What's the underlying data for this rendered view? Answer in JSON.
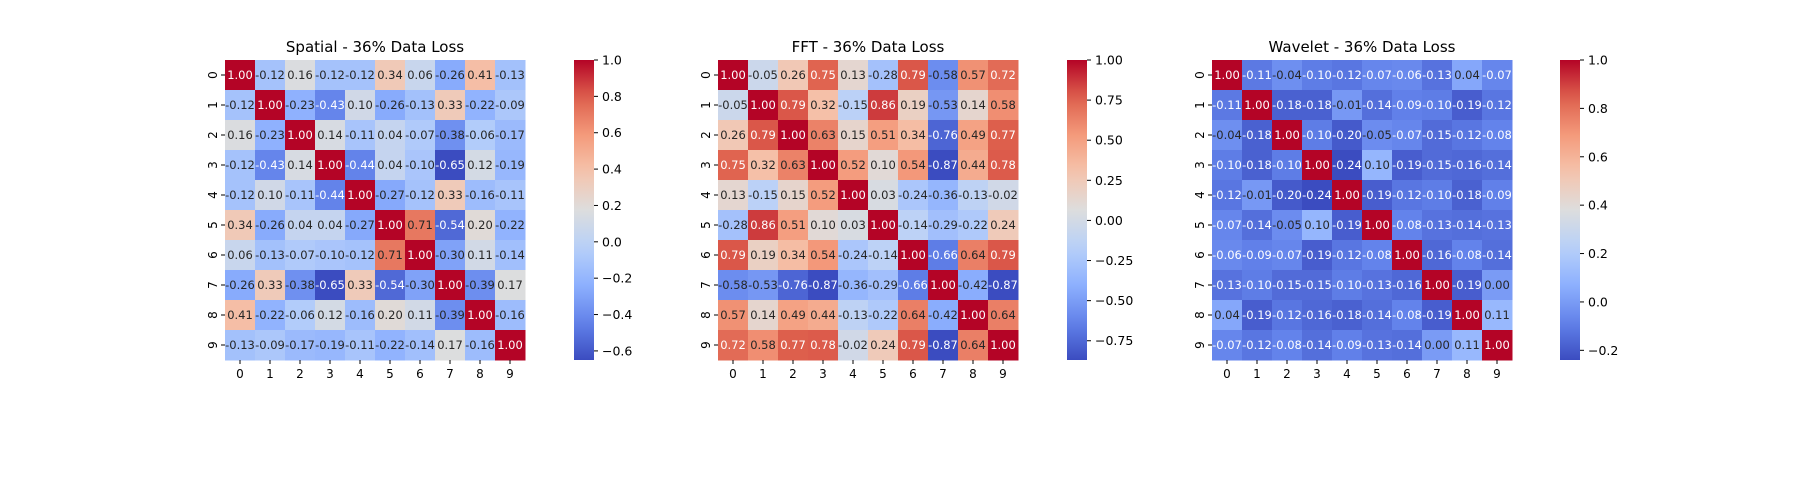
{
  "chart_data": [
    {
      "type": "heatmap",
      "title": "Spatial - 36% Data Loss",
      "x_labels": [
        "0",
        "1",
        "2",
        "3",
        "4",
        "5",
        "6",
        "7",
        "8",
        "9"
      ],
      "y_labels": [
        "0",
        "1",
        "2",
        "3",
        "4",
        "5",
        "6",
        "7",
        "8",
        "9"
      ],
      "vmin": -0.65,
      "vmax": 1.0,
      "colorbar_ticks": [
        -0.6,
        -0.4,
        -0.2,
        0.0,
        0.2,
        0.4,
        0.6,
        0.8,
        1.0
      ],
      "colorbar_tick_labels": [
        "−0.6",
        "−0.4",
        "−0.2",
        "0.0",
        "0.2",
        "0.4",
        "0.6",
        "0.8",
        "1.0"
      ],
      "colormap": "coolwarm",
      "values": [
        [
          1.0,
          -0.12,
          0.16,
          -0.12,
          -0.12,
          0.34,
          0.06,
          -0.26,
          0.41,
          -0.13
        ],
        [
          -0.12,
          1.0,
          -0.23,
          -0.43,
          0.1,
          -0.26,
          -0.13,
          0.33,
          -0.22,
          -0.09
        ],
        [
          0.16,
          -0.23,
          1.0,
          0.14,
          -0.11,
          0.04,
          -0.07,
          -0.38,
          -0.06,
          -0.17
        ],
        [
          -0.12,
          -0.43,
          0.14,
          1.0,
          -0.44,
          0.04,
          -0.1,
          -0.65,
          0.12,
          -0.19
        ],
        [
          -0.12,
          0.1,
          -0.11,
          -0.44,
          1.0,
          -0.27,
          -0.12,
          0.33,
          -0.16,
          -0.11
        ],
        [
          0.34,
          -0.26,
          0.04,
          0.04,
          -0.27,
          1.0,
          0.71,
          -0.54,
          0.2,
          -0.22
        ],
        [
          0.06,
          -0.13,
          -0.07,
          -0.1,
          -0.12,
          0.71,
          1.0,
          -0.3,
          0.11,
          -0.14
        ],
        [
          -0.26,
          0.33,
          -0.38,
          -0.65,
          0.33,
          -0.54,
          -0.3,
          1.0,
          -0.39,
          0.17
        ],
        [
          0.41,
          -0.22,
          -0.06,
          0.12,
          -0.16,
          0.2,
          0.11,
          -0.39,
          1.0,
          -0.16
        ],
        [
          -0.13,
          -0.09,
          -0.17,
          -0.19,
          -0.11,
          -0.22,
          -0.14,
          0.17,
          -0.16,
          1.0
        ]
      ]
    },
    {
      "type": "heatmap",
      "title": "FFT - 36% Data Loss",
      "x_labels": [
        "0",
        "1",
        "2",
        "3",
        "4",
        "5",
        "6",
        "7",
        "8",
        "9"
      ],
      "y_labels": [
        "0",
        "1",
        "2",
        "3",
        "4",
        "5",
        "6",
        "7",
        "8",
        "9"
      ],
      "vmin": -0.87,
      "vmax": 1.0,
      "colorbar_ticks": [
        -0.75,
        -0.5,
        -0.25,
        0.0,
        0.25,
        0.5,
        0.75,
        1.0
      ],
      "colorbar_tick_labels": [
        "−0.75",
        "−0.50",
        "−0.25",
        "0.00",
        "0.25",
        "0.50",
        "0.75",
        "1.00"
      ],
      "colormap": "coolwarm",
      "values": [
        [
          1.0,
          -0.05,
          0.26,
          0.75,
          0.13,
          -0.28,
          0.79,
          -0.58,
          0.57,
          0.72
        ],
        [
          -0.05,
          1.0,
          0.79,
          0.32,
          -0.15,
          0.86,
          0.19,
          -0.53,
          0.14,
          0.58
        ],
        [
          0.26,
          0.79,
          1.0,
          0.63,
          0.15,
          0.51,
          0.34,
          -0.76,
          0.49,
          0.77
        ],
        [
          0.75,
          0.32,
          0.63,
          1.0,
          0.52,
          0.1,
          0.54,
          -0.87,
          0.44,
          0.78
        ],
        [
          0.13,
          -0.15,
          0.15,
          0.52,
          1.0,
          0.03,
          -0.24,
          -0.36,
          -0.13,
          -0.02
        ],
        [
          -0.28,
          0.86,
          0.51,
          0.1,
          0.03,
          1.0,
          -0.14,
          -0.29,
          -0.22,
          0.24
        ],
        [
          0.79,
          0.19,
          0.34,
          0.54,
          -0.24,
          -0.14,
          1.0,
          -0.66,
          0.64,
          0.79
        ],
        [
          -0.58,
          -0.53,
          -0.76,
          -0.87,
          -0.36,
          -0.29,
          -0.66,
          1.0,
          -0.42,
          -0.87
        ],
        [
          0.57,
          0.14,
          0.49,
          0.44,
          -0.13,
          -0.22,
          0.64,
          -0.42,
          1.0,
          0.64
        ],
        [
          0.72,
          0.58,
          0.77,
          0.78,
          -0.02,
          0.24,
          0.79,
          -0.87,
          0.64,
          1.0
        ]
      ]
    },
    {
      "type": "heatmap",
      "title": "Wavelet - 36% Data Loss",
      "x_labels": [
        "0",
        "1",
        "2",
        "3",
        "4",
        "5",
        "6",
        "7",
        "8",
        "9"
      ],
      "y_labels": [
        "0",
        "1",
        "2",
        "3",
        "4",
        "5",
        "6",
        "7",
        "8",
        "9"
      ],
      "vmin": -0.24,
      "vmax": 1.0,
      "colorbar_ticks": [
        -0.2,
        0.0,
        0.2,
        0.4,
        0.6,
        0.8,
        1.0
      ],
      "colorbar_tick_labels": [
        "−0.2",
        "0.0",
        "0.2",
        "0.4",
        "0.6",
        "0.8",
        "1.0"
      ],
      "colormap": "coolwarm",
      "values": [
        [
          1.0,
          -0.11,
          -0.04,
          -0.1,
          -0.12,
          -0.07,
          -0.06,
          -0.13,
          0.04,
          -0.07
        ],
        [
          -0.11,
          1.0,
          -0.18,
          -0.18,
          -0.01,
          -0.14,
          -0.09,
          -0.1,
          -0.19,
          -0.12
        ],
        [
          -0.04,
          -0.18,
          1.0,
          -0.1,
          -0.2,
          -0.05,
          -0.07,
          -0.15,
          -0.12,
          -0.08
        ],
        [
          -0.1,
          -0.18,
          -0.1,
          1.0,
          -0.24,
          0.1,
          -0.19,
          -0.15,
          -0.16,
          -0.14
        ],
        [
          -0.12,
          -0.01,
          -0.2,
          -0.24,
          1.0,
          -0.19,
          -0.12,
          -0.1,
          -0.18,
          -0.09
        ],
        [
          -0.07,
          -0.14,
          -0.05,
          0.1,
          -0.19,
          1.0,
          -0.08,
          -0.13,
          -0.14,
          -0.13
        ],
        [
          -0.06,
          -0.09,
          -0.07,
          -0.19,
          -0.12,
          -0.08,
          1.0,
          -0.16,
          -0.08,
          -0.14
        ],
        [
          -0.13,
          -0.1,
          -0.15,
          -0.15,
          -0.1,
          -0.13,
          -0.16,
          1.0,
          -0.19,
          0.0
        ],
        [
          0.04,
          -0.19,
          -0.12,
          -0.16,
          -0.18,
          -0.14,
          -0.08,
          -0.19,
          1.0,
          0.11
        ],
        [
          -0.07,
          -0.12,
          -0.08,
          -0.14,
          -0.09,
          -0.13,
          -0.14,
          0.0,
          0.11,
          1.0
        ]
      ]
    }
  ]
}
